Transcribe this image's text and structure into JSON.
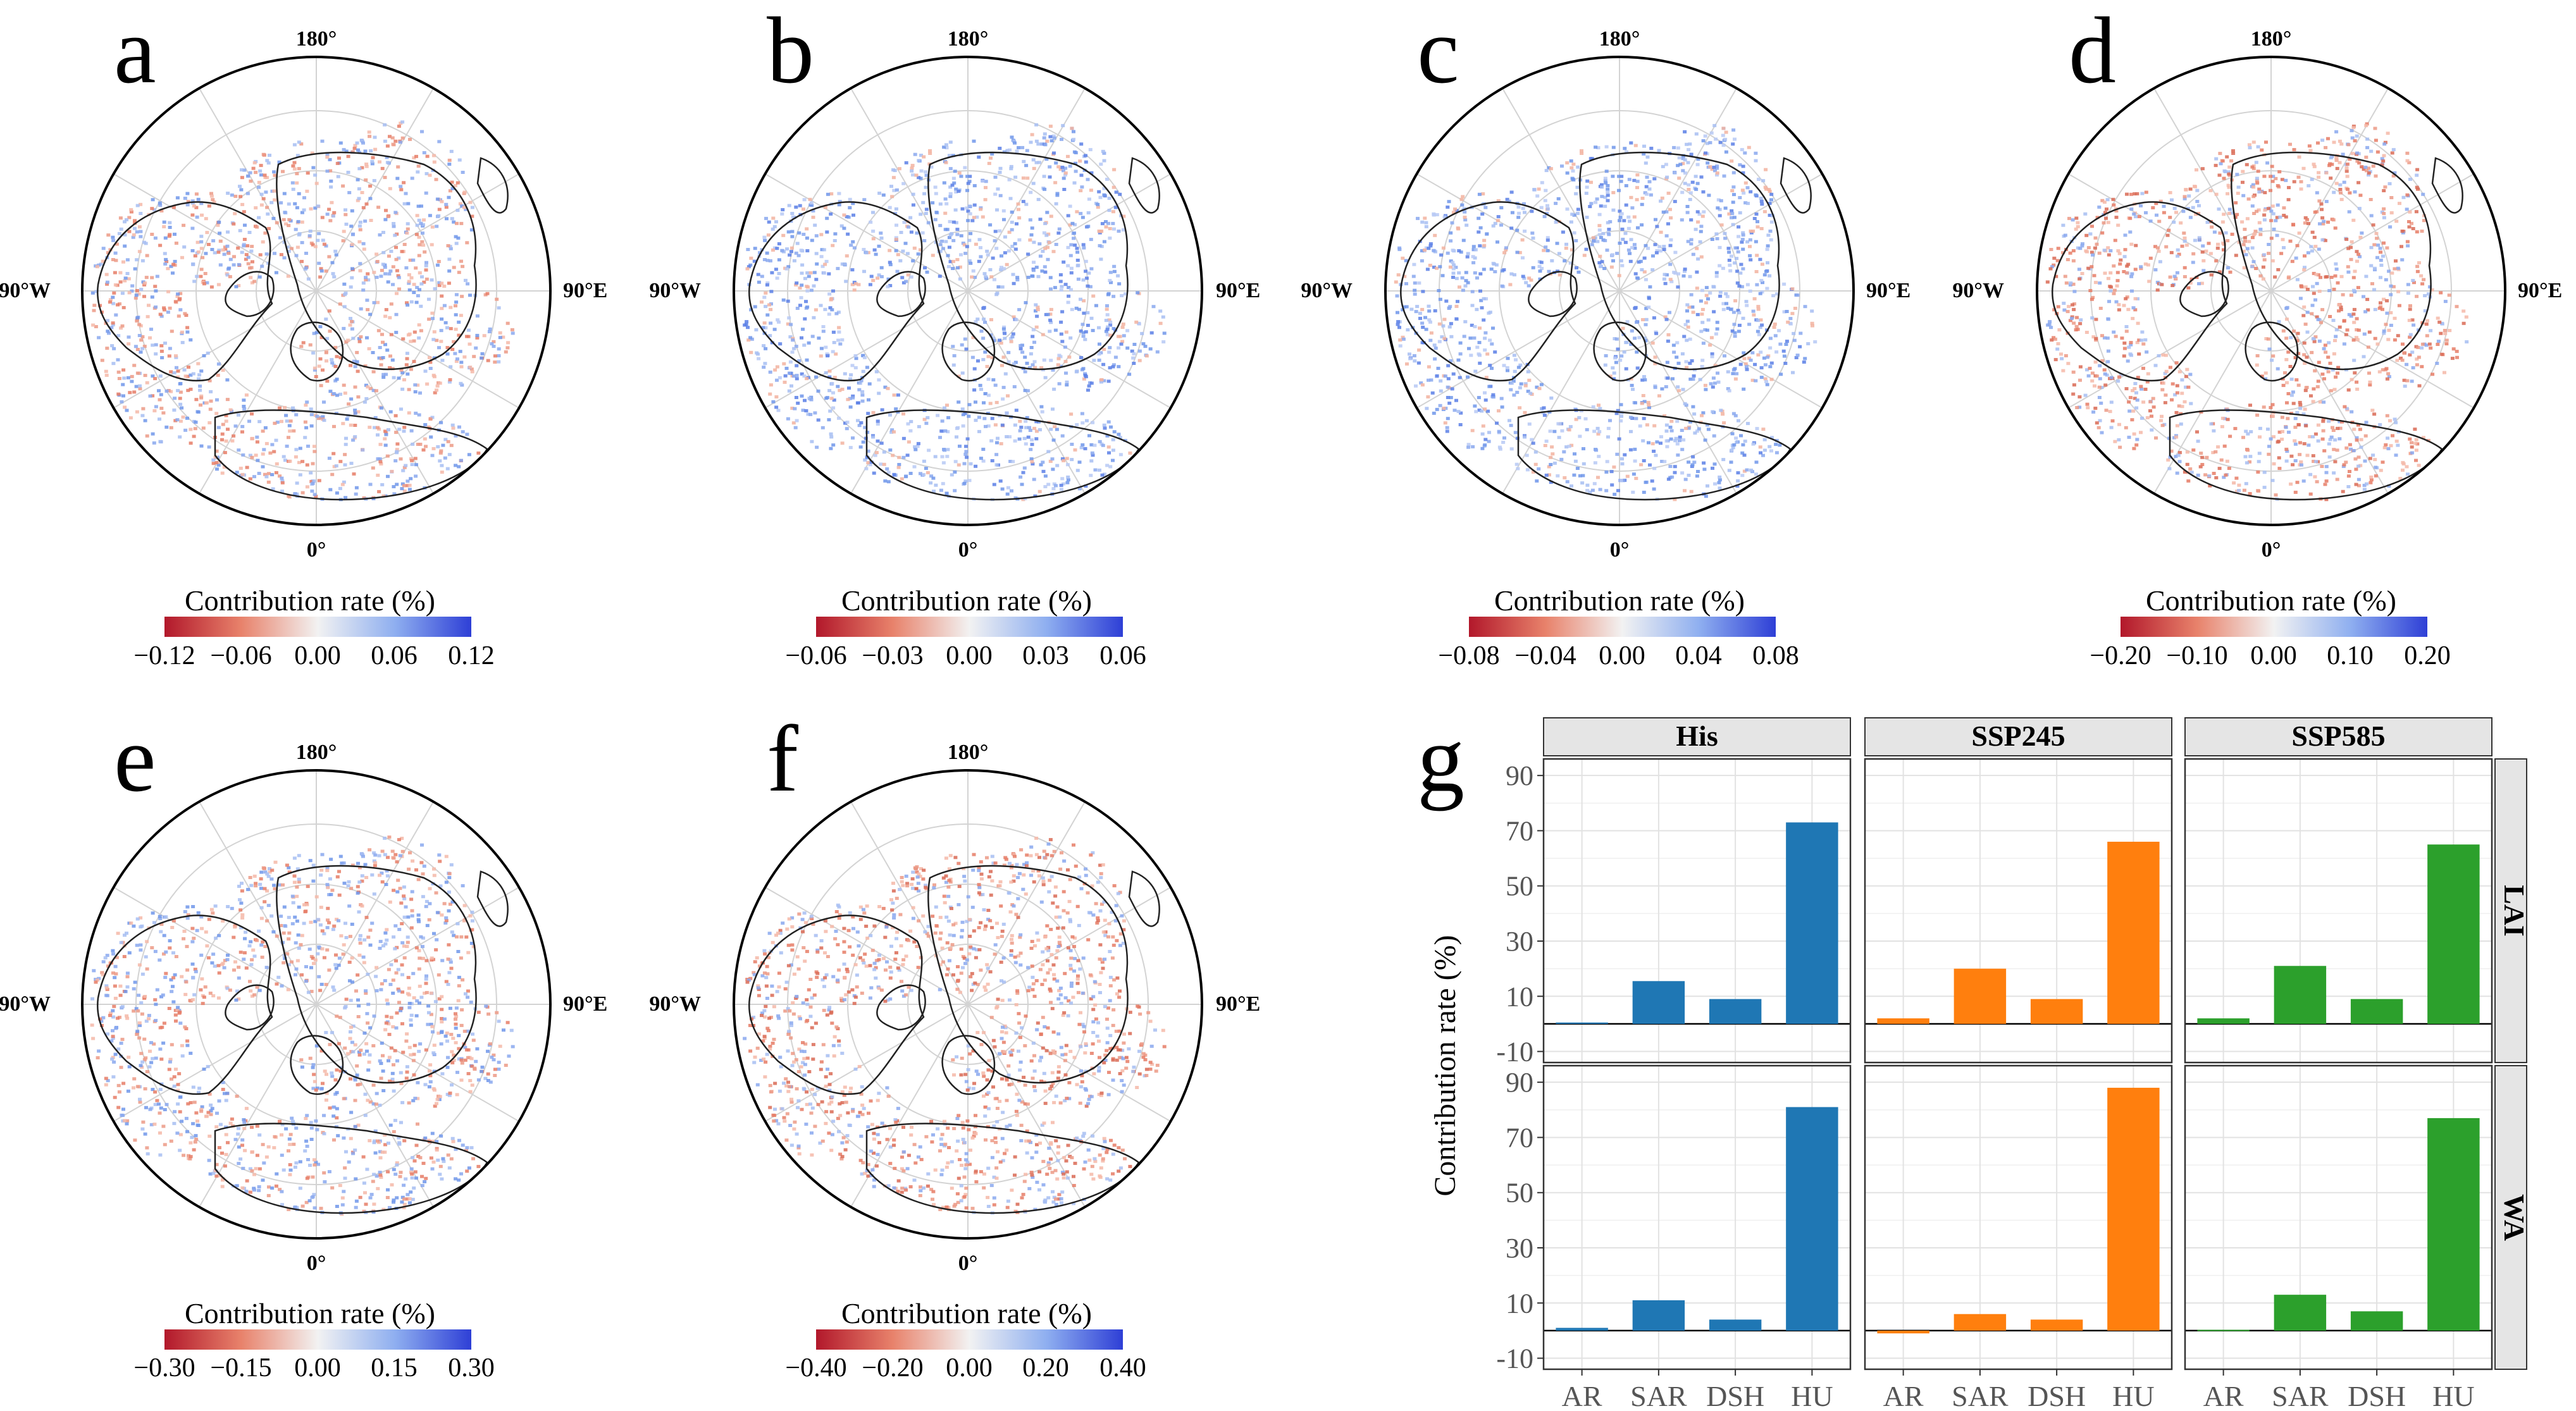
{
  "maps": [
    {
      "label": "a",
      "colorbar_title": "Contribution rate (%)",
      "ticks": [
        "−0.12",
        "−0.06",
        "0.00",
        "0.06",
        "0.12"
      ],
      "tone": "mixed"
    },
    {
      "label": "b",
      "colorbar_title": "Contribution rate (%)",
      "ticks": [
        "−0.06",
        "−0.03",
        "0.00",
        "0.03",
        "0.06"
      ],
      "tone": "blue"
    },
    {
      "label": "c",
      "colorbar_title": "Contribution rate (%)",
      "ticks": [
        "−0.08",
        "−0.04",
        "0.00",
        "0.04",
        "0.08"
      ],
      "tone": "blue"
    },
    {
      "label": "d",
      "colorbar_title": "Contribution rate (%)",
      "ticks": [
        "−0.20",
        "−0.10",
        "0.00",
        "0.10",
        "0.20"
      ],
      "tone": "red"
    },
    {
      "label": "e",
      "colorbar_title": "Contribution rate (%)",
      "ticks": [
        "−0.30",
        "−0.15",
        "0.00",
        "0.15",
        "0.30"
      ],
      "tone": "mixed"
    },
    {
      "label": "f",
      "colorbar_title": "Contribution rate (%)",
      "ticks": [
        "−0.40",
        "−0.20",
        "0.00",
        "0.20",
        "0.40"
      ],
      "tone": "red"
    }
  ],
  "map_labels": {
    "top": "180°",
    "bottom": "0°",
    "left": "90°W",
    "right": "90°E"
  },
  "colors": {
    "neg": "#b2182b",
    "mid": "#f7f7f7",
    "pos": "#2e3fd6",
    "his": "#1f77b4",
    "ssp245": "#ff7f0e",
    "ssp585": "#2ca02c"
  },
  "chart_data": {
    "type": "bar",
    "label": "g",
    "ylabel": "Contribution rate (%)",
    "categories": [
      "AR",
      "SAR",
      "DSH",
      "HU"
    ],
    "columns": [
      "His",
      "SSP245",
      "SSP585"
    ],
    "rows": [
      "LAI",
      "WA"
    ],
    "yticks": [
      -10,
      10,
      30,
      50,
      70,
      90
    ],
    "ylim": [
      -14,
      96
    ],
    "series": [
      {
        "name": "His",
        "row": "LAI",
        "values": [
          0.5,
          15.5,
          9,
          73
        ]
      },
      {
        "name": "SSP245",
        "row": "LAI",
        "values": [
          2,
          20,
          9,
          66
        ]
      },
      {
        "name": "SSP585",
        "row": "LAI",
        "values": [
          2,
          21,
          9,
          65
        ]
      },
      {
        "name": "His",
        "row": "WA",
        "values": [
          1,
          11,
          4,
          81
        ]
      },
      {
        "name": "SSP245",
        "row": "WA",
        "values": [
          -1,
          6,
          4,
          88
        ]
      },
      {
        "name": "SSP585",
        "row": "WA",
        "values": [
          0.3,
          13,
          7,
          77
        ]
      }
    ]
  }
}
